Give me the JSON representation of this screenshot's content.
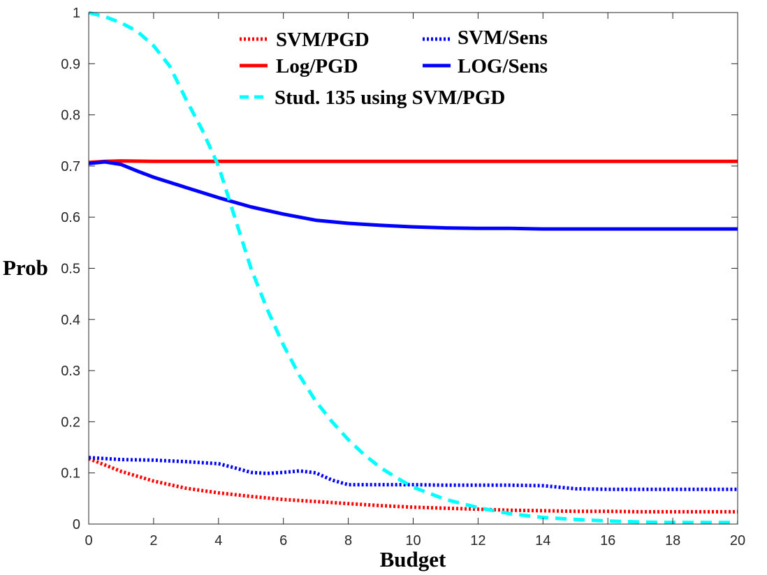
{
  "chart_data": {
    "type": "line",
    "title": "",
    "xlabel": "Budget",
    "ylabel": "Prob",
    "xlim": [
      0,
      20
    ],
    "ylim": [
      0,
      1
    ],
    "xticks": [
      0,
      2,
      4,
      6,
      8,
      10,
      12,
      14,
      16,
      18,
      20
    ],
    "yticks": [
      0,
      0.1,
      0.2,
      0.3,
      0.4,
      0.5,
      0.6,
      0.7,
      0.8,
      0.9,
      1
    ],
    "xtick_labels": [
      "0",
      "2",
      "4",
      "6",
      "8",
      "10",
      "12",
      "14",
      "16",
      "18",
      "20"
    ],
    "ytick_labels": [
      "0",
      "0.1",
      "0.2",
      "0.3",
      "0.4",
      "0.5",
      "0.6",
      "0.7",
      "0.8",
      "0.9",
      "1"
    ],
    "grid": false,
    "legend_position": "top",
    "series": [
      {
        "name": "SVM/PGD",
        "color": "#ff0000",
        "style": "dotted",
        "x": [
          0,
          1,
          2,
          3,
          4,
          5,
          6,
          7,
          8,
          9,
          10,
          11,
          12,
          13,
          14,
          15,
          16,
          17,
          18,
          19,
          20
        ],
        "y": [
          0.128,
          0.103,
          0.084,
          0.07,
          0.061,
          0.054,
          0.048,
          0.044,
          0.04,
          0.036,
          0.033,
          0.031,
          0.029,
          0.027,
          0.026,
          0.025,
          0.025,
          0.024,
          0.024,
          0.024,
          0.024
        ]
      },
      {
        "name": "SVM/Sens",
        "color": "#0000ff",
        "style": "dotted",
        "x": [
          0,
          1,
          2,
          3,
          4,
          4.5,
          5,
          5.5,
          6,
          6.5,
          7,
          7.5,
          8,
          9,
          10,
          11,
          12,
          13,
          14,
          15,
          16,
          17,
          18,
          19,
          20
        ],
        "y": [
          0.13,
          0.126,
          0.125,
          0.122,
          0.118,
          0.11,
          0.101,
          0.099,
          0.101,
          0.104,
          0.1,
          0.086,
          0.077,
          0.077,
          0.077,
          0.076,
          0.076,
          0.076,
          0.075,
          0.069,
          0.068,
          0.068,
          0.068,
          0.068,
          0.068
        ]
      },
      {
        "name": "Log/PGD",
        "color": "#ff0000",
        "style": "solid",
        "x": [
          0,
          0.5,
          1,
          2,
          3,
          4,
          6,
          8,
          10,
          12,
          14,
          16,
          18,
          20
        ],
        "y": [
          0.707,
          0.709,
          0.71,
          0.709,
          0.709,
          0.709,
          0.709,
          0.709,
          0.709,
          0.709,
          0.709,
          0.709,
          0.709,
          0.709
        ]
      },
      {
        "name": "LOG/Sens",
        "color": "#0000ff",
        "style": "solid",
        "x": [
          0,
          0.5,
          1,
          1.5,
          2,
          3,
          4,
          5,
          6,
          7,
          8,
          9,
          10,
          11,
          12,
          13,
          14,
          15,
          16,
          17,
          18,
          19,
          20
        ],
        "y": [
          0.705,
          0.708,
          0.703,
          0.69,
          0.678,
          0.658,
          0.638,
          0.62,
          0.606,
          0.594,
          0.588,
          0.584,
          0.581,
          0.579,
          0.578,
          0.578,
          0.577,
          0.577,
          0.577,
          0.577,
          0.577,
          0.577,
          0.577
        ]
      },
      {
        "name": "Stud. 135 using SVM/PGD",
        "color": "#00ffff",
        "style": "dashed",
        "x": [
          0,
          0.5,
          1,
          1.5,
          2,
          2.5,
          3,
          3.5,
          4,
          4.5,
          5,
          5.5,
          6,
          6.5,
          7,
          7.5,
          8,
          8.5,
          9,
          9.5,
          10,
          11,
          12,
          13,
          14,
          15,
          16,
          17,
          18,
          19,
          20
        ],
        "y": [
          1.0,
          0.992,
          0.98,
          0.963,
          0.935,
          0.895,
          0.83,
          0.77,
          0.7,
          0.6,
          0.5,
          0.42,
          0.35,
          0.29,
          0.24,
          0.2,
          0.165,
          0.135,
          0.11,
          0.09,
          0.072,
          0.048,
          0.032,
          0.02,
          0.013,
          0.009,
          0.006,
          0.004,
          0.003,
          0.003,
          0.003
        ]
      }
    ]
  }
}
